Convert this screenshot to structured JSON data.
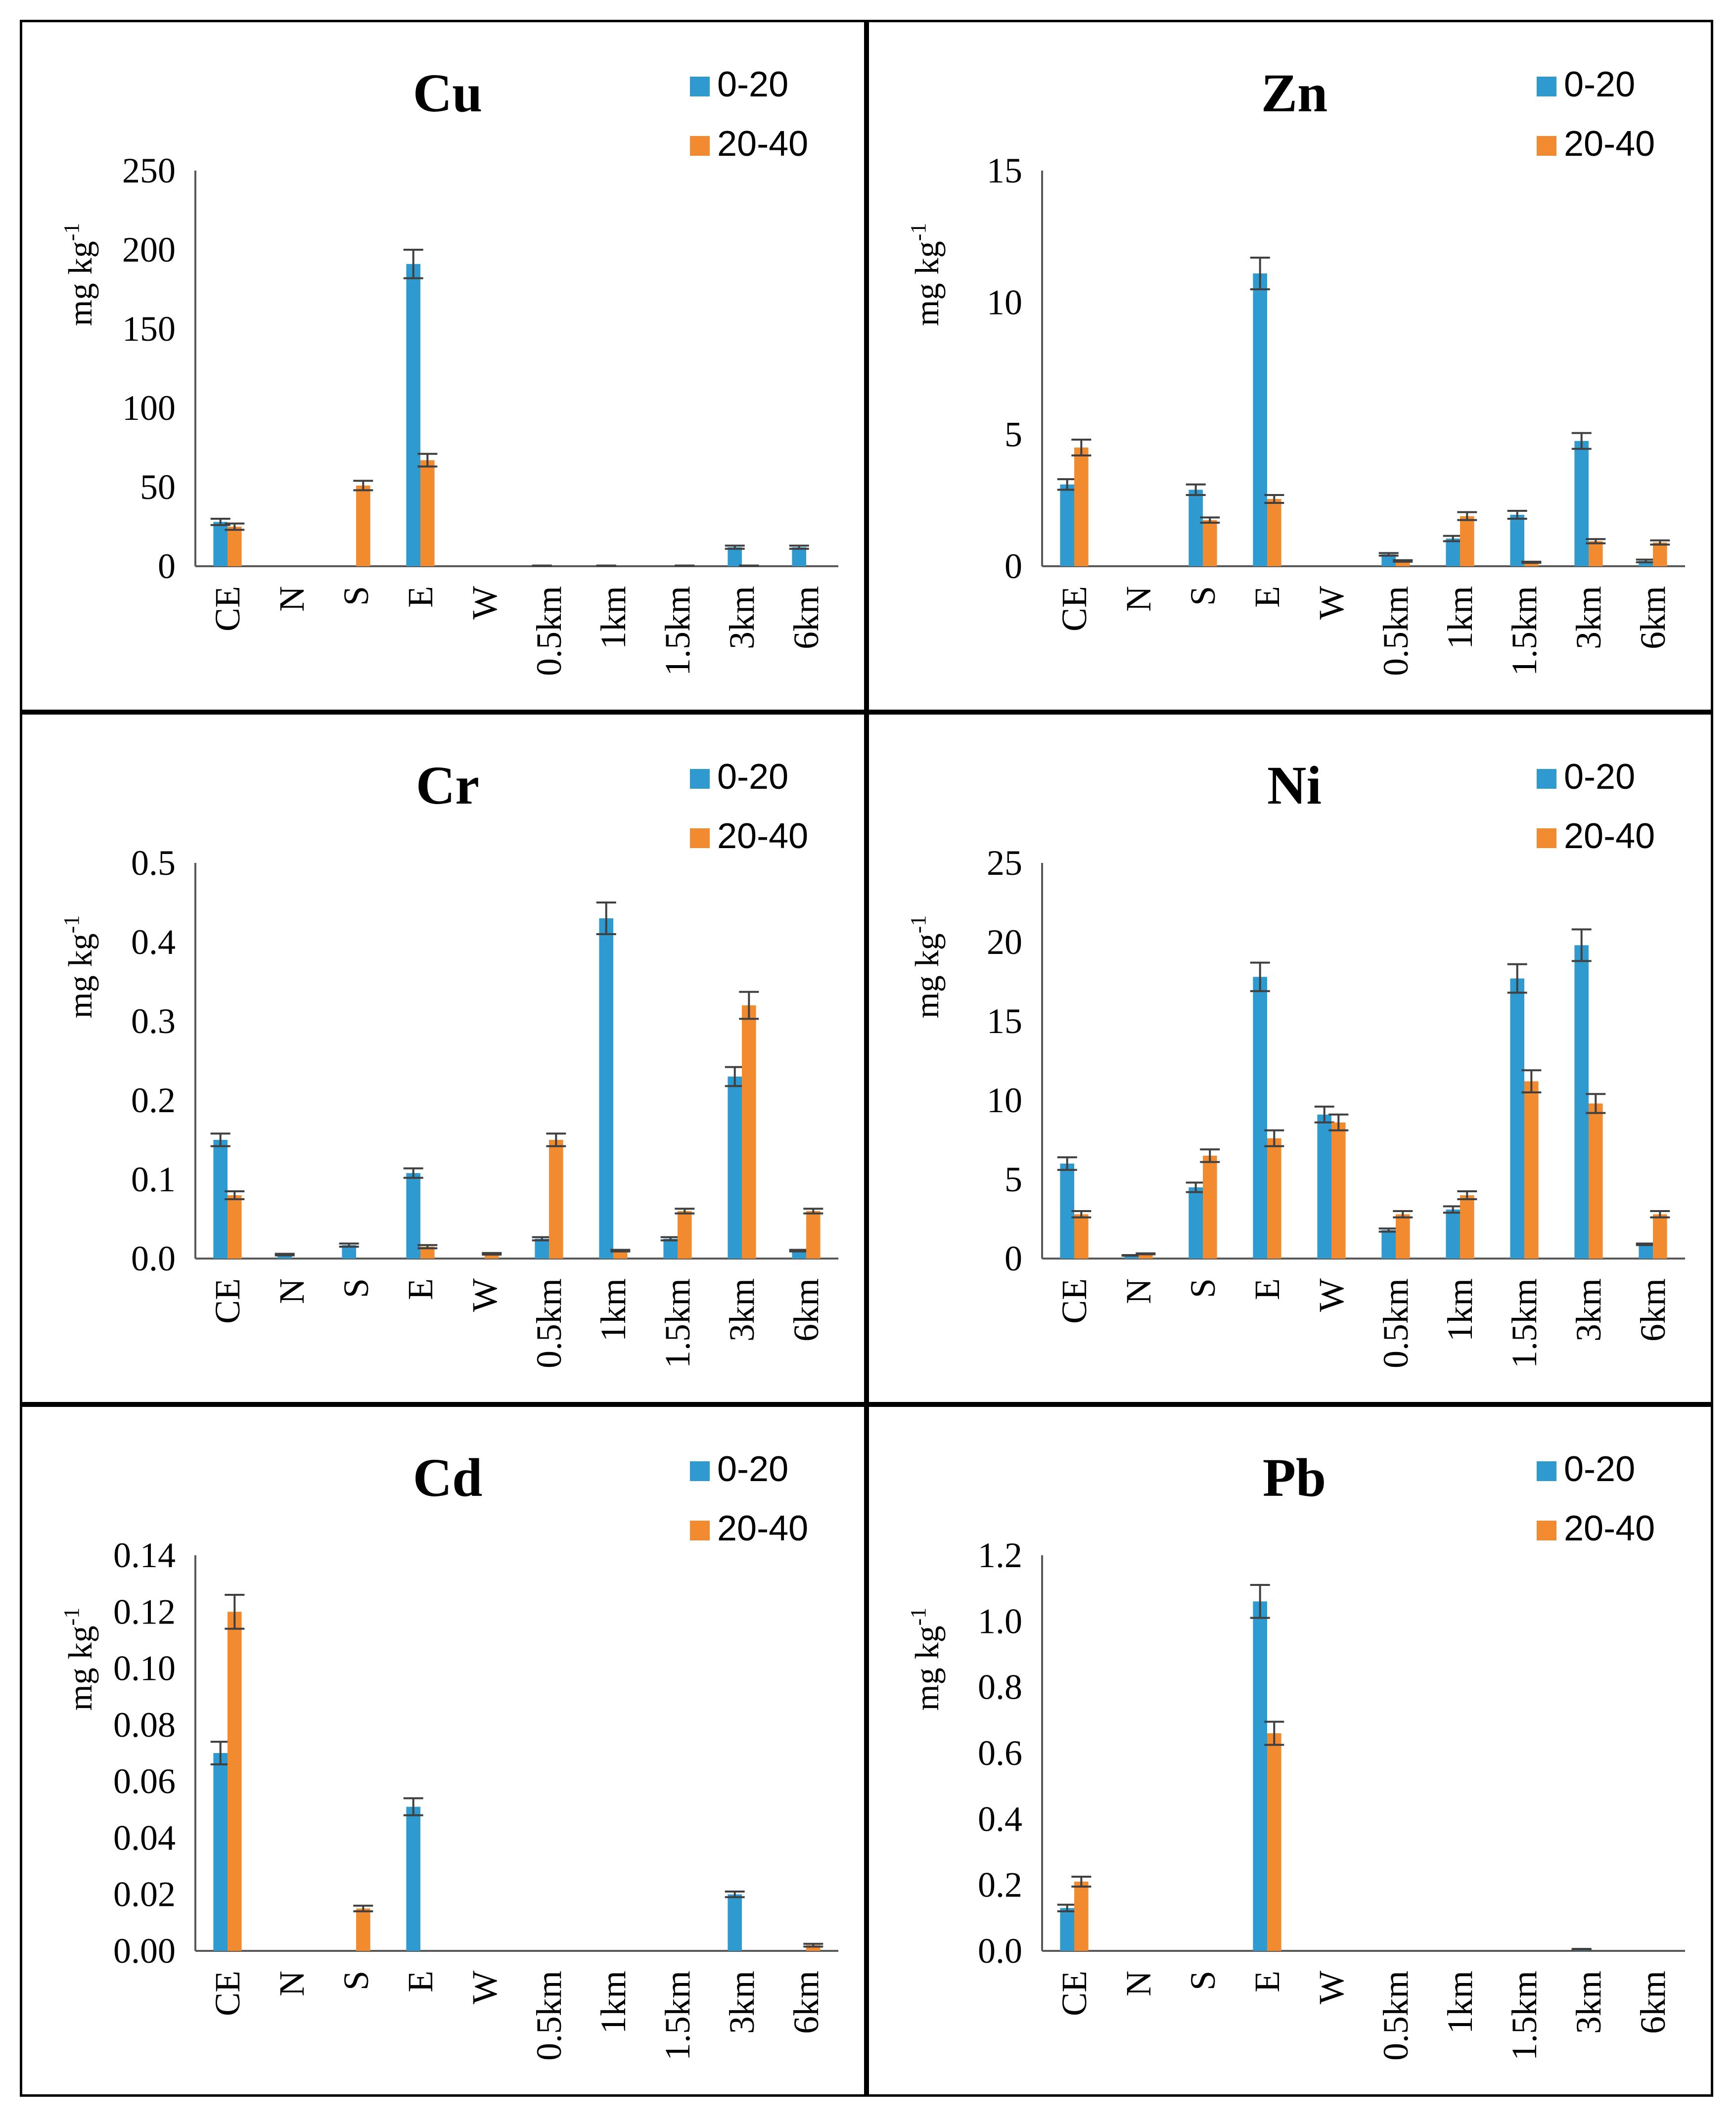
{
  "colors": {
    "series_0_20": "#2E9AD0",
    "series_20_40": "#F28A30",
    "axis": "#595959",
    "error": "#404040"
  },
  "chart_data": [
    {
      "type": "bar",
      "title": "Cu",
      "ylabel": "mg kg",
      "ylabel_sup": "-1",
      "categories": [
        "CE",
        "N",
        "S",
        "E",
        "W",
        "0.5km",
        "1km",
        "1.5km",
        "3km",
        "6km"
      ],
      "ylim": [
        0,
        250
      ],
      "yticks": [
        "0",
        "50",
        "100",
        "150",
        "200",
        "250"
      ],
      "series": [
        {
          "name": "0-20",
          "values": [
            28,
            0,
            0,
            191,
            0,
            0.4,
            0.4,
            0,
            12,
            12
          ],
          "errors": [
            2,
            0,
            0,
            9,
            0,
            0,
            0,
            0,
            1,
            1
          ]
        },
        {
          "name": "20-40",
          "values": [
            25,
            0,
            51,
            67,
            0,
            0,
            0,
            0.4,
            0.4,
            0
          ],
          "errors": [
            2,
            0,
            3,
            4,
            0,
            0,
            0,
            0,
            0,
            0
          ]
        }
      ]
    },
    {
      "type": "bar",
      "title": "Zn",
      "ylabel": "mg kg",
      "ylabel_sup": "-1",
      "categories": [
        "CE",
        "N",
        "S",
        "E",
        "W",
        "0.5km",
        "1km",
        "1.5km",
        "3km",
        "6km"
      ],
      "ylim": [
        0,
        15
      ],
      "yticks": [
        "0",
        "5",
        "10",
        "15"
      ],
      "series": [
        {
          "name": "0-20",
          "values": [
            3.1,
            0,
            2.9,
            11.1,
            0,
            0.45,
            1.05,
            1.95,
            4.75,
            0.2
          ],
          "errors": [
            0.2,
            0,
            0.2,
            0.6,
            0,
            0.05,
            0.1,
            0.15,
            0.3,
            0.05
          ]
        },
        {
          "name": "20-40",
          "values": [
            4.5,
            0,
            1.75,
            2.55,
            0,
            0.2,
            1.9,
            0.15,
            0.95,
            0.9
          ],
          "errors": [
            0.3,
            0,
            0.1,
            0.15,
            0,
            0.03,
            0.15,
            0.02,
            0.08,
            0.08
          ]
        }
      ]
    },
    {
      "type": "bar",
      "title": "Cr",
      "ylabel": "mg kg",
      "ylabel_sup": "-1",
      "categories": [
        "CE",
        "N",
        "S",
        "E",
        "W",
        "0.5km",
        "1km",
        "1.5km",
        "3km",
        "6km"
      ],
      "ylim": [
        0,
        0.5
      ],
      "yticks": [
        "0.0",
        "0.1",
        "0.2",
        "0.3",
        "0.4",
        "0.5"
      ],
      "series": [
        {
          "name": "0-20",
          "values": [
            0.15,
            0.005,
            0.017,
            0.108,
            0,
            0.025,
            0.43,
            0.025,
            0.23,
            0.01
          ],
          "errors": [
            0.008,
            0.001,
            0.002,
            0.006,
            0,
            0.002,
            0.02,
            0.002,
            0.012,
            0.001
          ]
        },
        {
          "name": "20-40",
          "values": [
            0.08,
            0,
            0,
            0.015,
            0.006,
            0.15,
            0.01,
            0.06,
            0.32,
            0.06
          ],
          "errors": [
            0.005,
            0,
            0,
            0.002,
            0.001,
            0.008,
            0.001,
            0.003,
            0.017,
            0.003
          ]
        }
      ]
    },
    {
      "type": "bar",
      "title": "Ni",
      "ylabel": "mg kg",
      "ylabel_sup": "-1",
      "categories": [
        "CE",
        "N",
        "S",
        "E",
        "W",
        "0.5km",
        "1km",
        "1.5km",
        "3km",
        "6km"
      ],
      "ylim": [
        0,
        25
      ],
      "yticks": [
        "0",
        "5",
        "10",
        "15",
        "20",
        "25"
      ],
      "series": [
        {
          "name": "0-20",
          "values": [
            6.0,
            0.2,
            4.5,
            17.8,
            9.1,
            1.8,
            3.1,
            17.7,
            19.8,
            0.9
          ],
          "errors": [
            0.4,
            0.02,
            0.3,
            0.9,
            0.5,
            0.1,
            0.2,
            0.9,
            1.0,
            0.05
          ]
        },
        {
          "name": "20-40",
          "values": [
            2.8,
            0.3,
            6.5,
            7.6,
            8.6,
            2.8,
            4.0,
            11.2,
            9.8,
            2.8
          ],
          "errors": [
            0.2,
            0.03,
            0.4,
            0.5,
            0.5,
            0.2,
            0.25,
            0.7,
            0.6,
            0.2
          ]
        }
      ]
    },
    {
      "type": "bar",
      "title": "Cd",
      "ylabel": "mg kg",
      "ylabel_sup": "-1",
      "categories": [
        "CE",
        "N",
        "S",
        "E",
        "W",
        "0.5km",
        "1km",
        "1.5km",
        "3km",
        "6km"
      ],
      "ylim": [
        0,
        0.14
      ],
      "yticks": [
        "0.00",
        "0.02",
        "0.04",
        "0.06",
        "0.08",
        "0.10",
        "0.12",
        "0.14"
      ],
      "series": [
        {
          "name": "0-20",
          "values": [
            0.07,
            0,
            0,
            0.051,
            0,
            0,
            0,
            0,
            0.02,
            0
          ],
          "errors": [
            0.004,
            0,
            0,
            0.003,
            0,
            0,
            0,
            0,
            0.001,
            0
          ]
        },
        {
          "name": "20-40",
          "values": [
            0.12,
            0,
            0.015,
            0,
            0,
            0,
            0,
            0,
            0,
            0.002
          ],
          "errors": [
            0.006,
            0,
            0.001,
            0,
            0,
            0,
            0,
            0,
            0,
            0.0005
          ]
        }
      ]
    },
    {
      "type": "bar",
      "title": "Pb",
      "ylabel": "mg kg",
      "ylabel_sup": "-1",
      "categories": [
        "CE",
        "N",
        "S",
        "E",
        "W",
        "0.5km",
        "1km",
        "1.5km",
        "3km",
        "6km"
      ],
      "ylim": [
        0,
        1.2
      ],
      "yticks": [
        "0.0",
        "0.2",
        "0.4",
        "0.6",
        "0.8",
        "1.0",
        "1.2"
      ],
      "series": [
        {
          "name": "0-20",
          "values": [
            0.13,
            0,
            0,
            1.06,
            0,
            0,
            0,
            0,
            0.005,
            0
          ],
          "errors": [
            0.01,
            0,
            0,
            0.05,
            0,
            0,
            0,
            0,
            0.001,
            0
          ]
        },
        {
          "name": "20-40",
          "values": [
            0.21,
            0,
            0,
            0.66,
            0,
            0,
            0,
            0,
            0,
            0
          ],
          "errors": [
            0.015,
            0,
            0,
            0.035,
            0,
            0,
            0,
            0,
            0,
            0
          ]
        }
      ]
    }
  ]
}
